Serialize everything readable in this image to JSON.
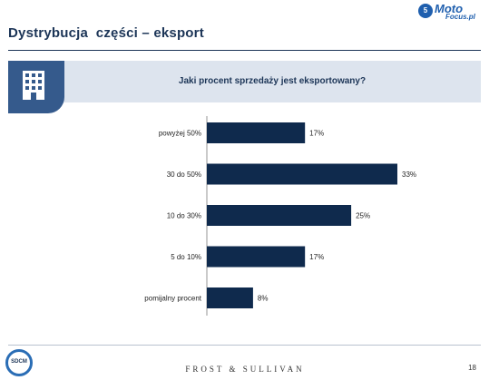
{
  "slide": {
    "title": "Dystrybucja  części – eksport",
    "question": "Jaki procent sprzedaży jest eksportowany?",
    "footer_brand": "FROST & SULLIVAN",
    "page_number": "18"
  },
  "logos": {
    "motofocus_badge": "5",
    "motofocus_word": "Moto",
    "motofocus_domain": "Focus.pl",
    "sdcm": "SDCM"
  },
  "colors": {
    "bar": "#0f2a4d",
    "title": "#1c3557",
    "header_band": "#dde4ee",
    "icon_tab": "#355a8c"
  },
  "icons": {
    "header_icon": "building-icon"
  },
  "chart_data": {
    "type": "bar",
    "orientation": "horizontal",
    "categories": [
      "powyżej 50%",
      "30 do 50%",
      "10 do 30%",
      "5 do 10%",
      "pomijalny procent"
    ],
    "values": [
      17,
      33,
      25,
      17,
      8
    ],
    "value_labels": [
      "17%",
      "33%",
      "25%",
      "17%",
      "8%"
    ],
    "title": "Jaki procent sprzedaży jest eksportowany?",
    "xlim": [
      0,
      33
    ],
    "grid": false,
    "legend": "none"
  }
}
